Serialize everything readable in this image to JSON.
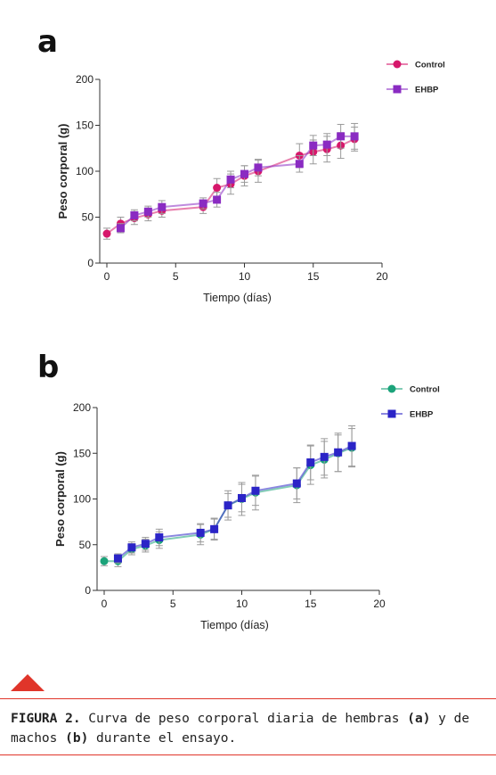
{
  "colors": {
    "female_control": "#d6176b",
    "female_ehbp": "#8a2bc2",
    "male_control": "#1ba37a",
    "male_ehbp": "#2b24c7",
    "error_bar": "#9a9a9a",
    "accent": "#e0352a"
  },
  "chart_data": [
    {
      "panel": "a",
      "type": "line",
      "title": "",
      "xlabel": "Tiempo (días)",
      "ylabel": "Peso corporal (g)",
      "xlim": [
        0,
        20
      ],
      "ylim": [
        0,
        200
      ],
      "xticks": [
        0,
        5,
        10,
        15,
        20
      ],
      "yticks": [
        0,
        50,
        100,
        150,
        200
      ],
      "grid": false,
      "legend_position": "top-right",
      "series": [
        {
          "name": "Control",
          "marker": "circle",
          "x": [
            0,
            1,
            2,
            3,
            4,
            7,
            8,
            9,
            10,
            11,
            14,
            15,
            16,
            17,
            18
          ],
          "values": [
            32,
            43,
            49,
            53,
            57,
            61,
            82,
            86,
            95,
            100,
            117,
            121,
            124,
            128,
            135
          ],
          "error": [
            6,
            7,
            7,
            7,
            7,
            7,
            10,
            11,
            11,
            12,
            13,
            13,
            14,
            14,
            13
          ]
        },
        {
          "name": "EHBP",
          "marker": "square",
          "x": [
            1,
            2,
            3,
            4,
            7,
            8,
            9,
            10,
            11,
            14,
            15,
            16,
            17,
            18
          ],
          "values": [
            38,
            52,
            56,
            61,
            65,
            69,
            91,
            97,
            104,
            108,
            128,
            129,
            138,
            138
          ],
          "error": [
            5,
            6,
            6,
            7,
            6,
            8,
            9,
            9,
            9,
            9,
            11,
            12,
            13,
            14
          ]
        }
      ]
    },
    {
      "panel": "b",
      "type": "line",
      "title": "",
      "xlabel": "Tiempo (días)",
      "ylabel": "Peso corporal (g)",
      "xlim": [
        0,
        20
      ],
      "ylim": [
        0,
        200
      ],
      "xticks": [
        0,
        5,
        10,
        15,
        20
      ],
      "yticks": [
        0,
        50,
        100,
        150,
        200
      ],
      "grid": false,
      "legend_position": "top-right",
      "series": [
        {
          "name": "Control",
          "marker": "circle",
          "x": [
            0,
            1,
            2,
            3,
            4,
            7,
            8,
            9,
            10,
            11,
            14,
            15,
            16,
            17,
            18
          ],
          "values": [
            32,
            32,
            45,
            49,
            55,
            61,
            67,
            93,
            100,
            107,
            115,
            137,
            143,
            150,
            156
          ],
          "error": [
            5,
            6,
            6,
            7,
            9,
            11,
            12,
            16,
            18,
            19,
            19,
            21,
            20,
            20,
            21
          ]
        },
        {
          "name": "EHBP",
          "marker": "square",
          "x": [
            1,
            2,
            3,
            4,
            7,
            8,
            9,
            10,
            11,
            14,
            15,
            16,
            17,
            18
          ],
          "values": [
            35,
            47,
            51,
            58,
            63,
            67,
            93,
            101,
            109,
            117,
            140,
            146,
            151,
            158
          ],
          "error": [
            5,
            6,
            7,
            9,
            10,
            11,
            13,
            15,
            16,
            17,
            19,
            20,
            21,
            22
          ]
        }
      ]
    }
  ],
  "caption": {
    "label": "FIGURA 2.",
    "text_1": " Curva de peso corporal diaria de hembras ",
    "ref_a": "(a)",
    "text_2": " y de machos ",
    "ref_b": "(b)",
    "text_3": " durante el ensayo."
  }
}
